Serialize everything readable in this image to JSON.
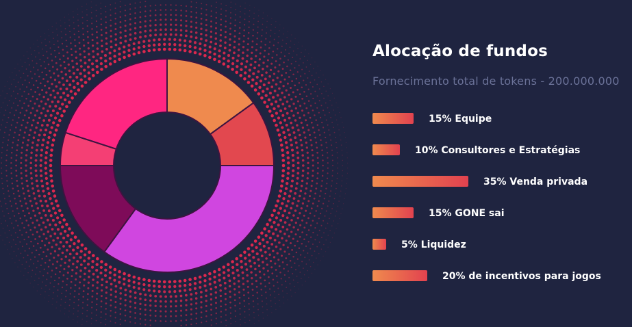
{
  "title": "Alocação de fundos",
  "subtitle": "Fornecimento total de tokens - 200.000.000",
  "colors": {
    "background": "#1f2440",
    "dots": "#e8294f",
    "bar_start": "#ef8a4e",
    "bar_end": "#e2424f"
  },
  "chart_data": {
    "type": "pie",
    "style": "donut",
    "title": "Alocação de fundos",
    "subtitle": "Fornecimento total de tokens - 200.000.000",
    "slices": [
      {
        "label": "15% Equipe",
        "value": 15,
        "color": "#ef8a4e"
      },
      {
        "label": "10% Consultores e Estratégias",
        "value": 10,
        "color": "#e2484f"
      },
      {
        "label": "35% Venda privada",
        "value": 35,
        "color": "#d046e0"
      },
      {
        "label": "15% GONE sai",
        "value": 15,
        "color": "#7e0b59"
      },
      {
        "label": "5% Liquidez",
        "value": 5,
        "color": "#f43f74"
      },
      {
        "label": "20% de incentivos para jogos",
        "value": 20,
        "color": "#ff2681"
      }
    ]
  }
}
